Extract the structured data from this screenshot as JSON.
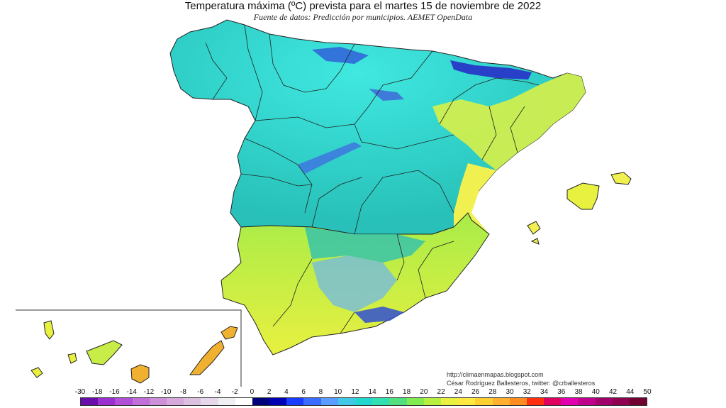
{
  "title": "Temperatura máxima (ºC) prevista para el martes 15 de noviembre de 2022",
  "subtitle": "Fuente de datos: Predicción por municipios. AEMET OpenData",
  "credits": {
    "url": "http://climaenmapas.blogspot.com",
    "author": "César Rodríguez Ballesteros, twitter: @crballesteros"
  },
  "legend": {
    "labels": [
      "-30",
      "-18",
      "-16",
      "-14",
      "-12",
      "-10",
      "-8",
      "-6",
      "-4",
      "-2",
      "0",
      "2",
      "4",
      "6",
      "8",
      "10",
      "12",
      "14",
      "16",
      "18",
      "20",
      "22",
      "24",
      "26",
      "28",
      "30",
      "32",
      "34",
      "36",
      "38",
      "40",
      "42",
      "44",
      "50"
    ],
    "colors": [
      "#6a0dad",
      "#9b30d0",
      "#b04fd8",
      "#c070d8",
      "#cc8fd8",
      "#d6a8dc",
      "#dcc0e0",
      "#e6d8ea",
      "#f0f0f4",
      "#ffffff",
      "#00007a",
      "#0000b4",
      "#1a3cff",
      "#3a6cff",
      "#5a9cff",
      "#40c8e8",
      "#20d8d0",
      "#30e0b0",
      "#50e080",
      "#80ec50",
      "#b8f040",
      "#e8f040",
      "#ffe840",
      "#ffd030",
      "#ffb030",
      "#ff8c20",
      "#ff3010",
      "#e00060",
      "#e000b0",
      "#c0008c",
      "#a0006c",
      "#900050",
      "#700030"
    ]
  },
  "map_colors": {
    "cold_north": "#40d8d0",
    "north_coast": "#50d0c8",
    "mountains": "#3050d0",
    "interior": "#30c8b8",
    "southwest": "#b8f040",
    "south": "#e8f040",
    "east_coast": "#f0f050",
    "canarias": "#f0b030"
  }
}
